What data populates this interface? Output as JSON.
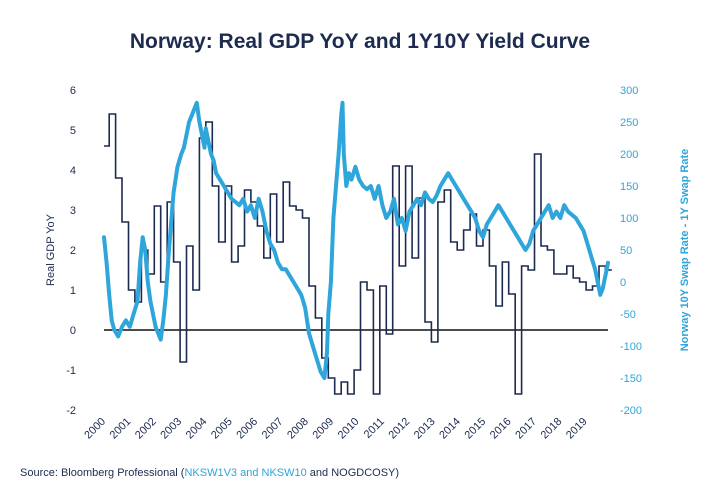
{
  "chart_data": {
    "type": "line",
    "title": "Norway: Real GDP YoY and 1Y10Y Yield Curve",
    "source": {
      "prefix": "Source: Bloomberg Professional (",
      "highlight": "NKSW1V3 and NKSW10",
      "suffix": " and NOGDCOSY)"
    },
    "x_categories": [
      "2000",
      "2001",
      "2002",
      "2003",
      "2004",
      "2005",
      "2006",
      "2007",
      "2008",
      "2009",
      "2010",
      "2011",
      "2012",
      "2013",
      "2014",
      "2015",
      "2016",
      "2017",
      "2018",
      "2019"
    ],
    "left_axis": {
      "label": "Real GDP YoY",
      "ylim": [
        -2,
        6
      ],
      "ticks": [
        -2,
        -1,
        0,
        1,
        2,
        3,
        4,
        5,
        6
      ],
      "color": "#1c2b4f"
    },
    "right_axis": {
      "label": "Norway 10Y Swap Rate - 1Y Swap Rate",
      "ylim": [
        -200,
        300
      ],
      "ticks": [
        -200,
        -150,
        -100,
        -50,
        0,
        50,
        100,
        150,
        200,
        250,
        300
      ],
      "color": "#2ea5db"
    },
    "series": [
      {
        "name": "Real GDP YoY",
        "axis": "left",
        "style": "step",
        "color": "#1c2b4f",
        "x": [
          1999.9,
          2000.1,
          2000.35,
          2000.6,
          2000.85,
          2001.1,
          2001.35,
          2001.6,
          2001.85,
          2002.1,
          2002.35,
          2002.6,
          2002.85,
          2003.1,
          2003.35,
          2003.6,
          2003.85,
          2004.1,
          2004.35,
          2004.6,
          2004.85,
          2005.1,
          2005.35,
          2005.6,
          2005.85,
          2006.1,
          2006.35,
          2006.6,
          2006.85,
          2007.1,
          2007.35,
          2007.6,
          2007.85,
          2008.1,
          2008.35,
          2008.6,
          2008.85,
          2009.1,
          2009.35,
          2009.6,
          2009.85,
          2010.1,
          2010.35,
          2010.6,
          2010.85,
          2011.1,
          2011.35,
          2011.6,
          2011.85,
          2012.1,
          2012.35,
          2012.6,
          2012.85,
          2013.1,
          2013.35,
          2013.6,
          2013.85,
          2014.1,
          2014.35,
          2014.6,
          2014.85,
          2015.1,
          2015.35,
          2015.6,
          2015.85,
          2016.1,
          2016.35,
          2016.6,
          2016.85,
          2017.1,
          2017.35,
          2017.6,
          2017.85,
          2018.1,
          2018.35,
          2018.6,
          2018.85,
          2019.1,
          2019.35
        ],
        "values": [
          4.6,
          5.4,
          3.8,
          2.7,
          1.0,
          0.7,
          2.0,
          1.4,
          3.1,
          1.2,
          3.2,
          1.7,
          -0.8,
          2.1,
          1.0,
          4.8,
          5.2,
          3.6,
          2.2,
          3.6,
          1.7,
          2.1,
          3.5,
          3.2,
          2.6,
          1.8,
          3.4,
          2.2,
          3.7,
          3.1,
          3.0,
          2.8,
          1.1,
          0.3,
          -0.7,
          -1.2,
          -1.6,
          -1.3,
          -1.6,
          -1.0,
          1.2,
          1.0,
          -1.6,
          1.1,
          -0.1,
          4.1,
          1.6,
          4.1,
          1.8,
          3.3,
          0.2,
          -0.3,
          3.2,
          3.5,
          2.2,
          2.0,
          2.5,
          2.9,
          2.1,
          2.5,
          1.6,
          0.6,
          1.7,
          0.9,
          -1.6,
          1.6,
          1.5,
          4.4,
          2.1,
          2.0,
          1.4,
          1.4,
          1.6,
          1.3,
          1.2,
          1.0,
          1.1,
          1.6,
          1.5
        ]
      },
      {
        "name": "Norway 10Y Swap Rate - 1Y Swap Rate",
        "axis": "right",
        "style": "line",
        "color": "#2ea5db",
        "x": [
          1999.9,
          2000.0,
          2000.1,
          2000.2,
          2000.3,
          2000.45,
          2000.6,
          2000.75,
          2000.9,
          2001.05,
          2001.2,
          2001.3,
          2001.4,
          2001.5,
          2001.6,
          2001.7,
          2001.8,
          2001.9,
          2002.0,
          2002.1,
          2002.2,
          2002.3,
          2002.4,
          2002.5,
          2002.6,
          2002.75,
          2002.9,
          2003.0,
          2003.1,
          2003.2,
          2003.3,
          2003.4,
          2003.5,
          2003.6,
          2003.7,
          2003.8,
          2003.85,
          2003.95,
          2004.05,
          2004.15,
          2004.25,
          2004.4,
          2004.55,
          2004.7,
          2004.85,
          2005.0,
          2005.15,
          2005.3,
          2005.45,
          2005.6,
          2005.75,
          2005.9,
          2006.05,
          2006.2,
          2006.35,
          2006.5,
          2006.65,
          2006.8,
          2006.95,
          2007.1,
          2007.25,
          2007.4,
          2007.55,
          2007.7,
          2007.85,
          2008.0,
          2008.15,
          2008.3,
          2008.45,
          2008.55,
          2008.6,
          2008.7,
          2008.8,
          2008.9,
          2009.0,
          2009.1,
          2009.15,
          2009.2,
          2009.3,
          2009.4,
          2009.5,
          2009.65,
          2009.8,
          2009.95,
          2010.1,
          2010.25,
          2010.4,
          2010.55,
          2010.7,
          2010.85,
          2011.0,
          2011.15,
          2011.3,
          2011.45,
          2011.6,
          2011.75,
          2011.9,
          2012.05,
          2012.2,
          2012.35,
          2012.5,
          2012.65,
          2012.8,
          2012.95,
          2013.1,
          2013.25,
          2013.4,
          2013.55,
          2013.7,
          2013.85,
          2014.0,
          2014.15,
          2014.3,
          2014.45,
          2014.6,
          2014.75,
          2014.9,
          2015.05,
          2015.2,
          2015.35,
          2015.5,
          2015.65,
          2015.8,
          2015.95,
          2016.1,
          2016.25,
          2016.4,
          2016.55,
          2016.7,
          2016.85,
          2017.0,
          2017.15,
          2017.3,
          2017.45,
          2017.6,
          2017.75,
          2017.9,
          2018.05,
          2018.2,
          2018.35,
          2018.5,
          2018.65,
          2018.8,
          2018.95,
          2019.05,
          2019.15,
          2019.25,
          2019.35,
          2019.45
        ],
        "values": [
          70,
          30,
          -20,
          -60,
          -75,
          -85,
          -70,
          -60,
          -70,
          -50,
          -30,
          30,
          70,
          50,
          0,
          -30,
          -50,
          -70,
          -80,
          -90,
          -60,
          -20,
          40,
          90,
          140,
          180,
          200,
          210,
          230,
          250,
          260,
          270,
          280,
          250,
          230,
          210,
          240,
          220,
          200,
          190,
          170,
          160,
          150,
          140,
          130,
          125,
          120,
          130,
          110,
          120,
          100,
          130,
          110,
          80,
          60,
          50,
          30,
          20,
          20,
          10,
          0,
          -10,
          -20,
          -40,
          -80,
          -100,
          -120,
          -140,
          -150,
          -110,
          -50,
          0,
          100,
          150,
          200,
          260,
          280,
          200,
          150,
          170,
          160,
          180,
          160,
          150,
          145,
          150,
          130,
          150,
          120,
          100,
          110,
          130,
          90,
          100,
          80,
          110,
          120,
          130,
          120,
          140,
          130,
          125,
          135,
          150,
          160,
          170,
          160,
          150,
          140,
          130,
          120,
          110,
          100,
          80,
          70,
          90,
          100,
          110,
          120,
          110,
          100,
          90,
          80,
          70,
          60,
          50,
          60,
          80,
          90,
          100,
          110,
          120,
          100,
          110,
          100,
          120,
          110,
          105,
          100,
          90,
          80,
          60,
          40,
          20,
          0,
          -20,
          -10,
          10,
          30
        ]
      }
    ]
  }
}
